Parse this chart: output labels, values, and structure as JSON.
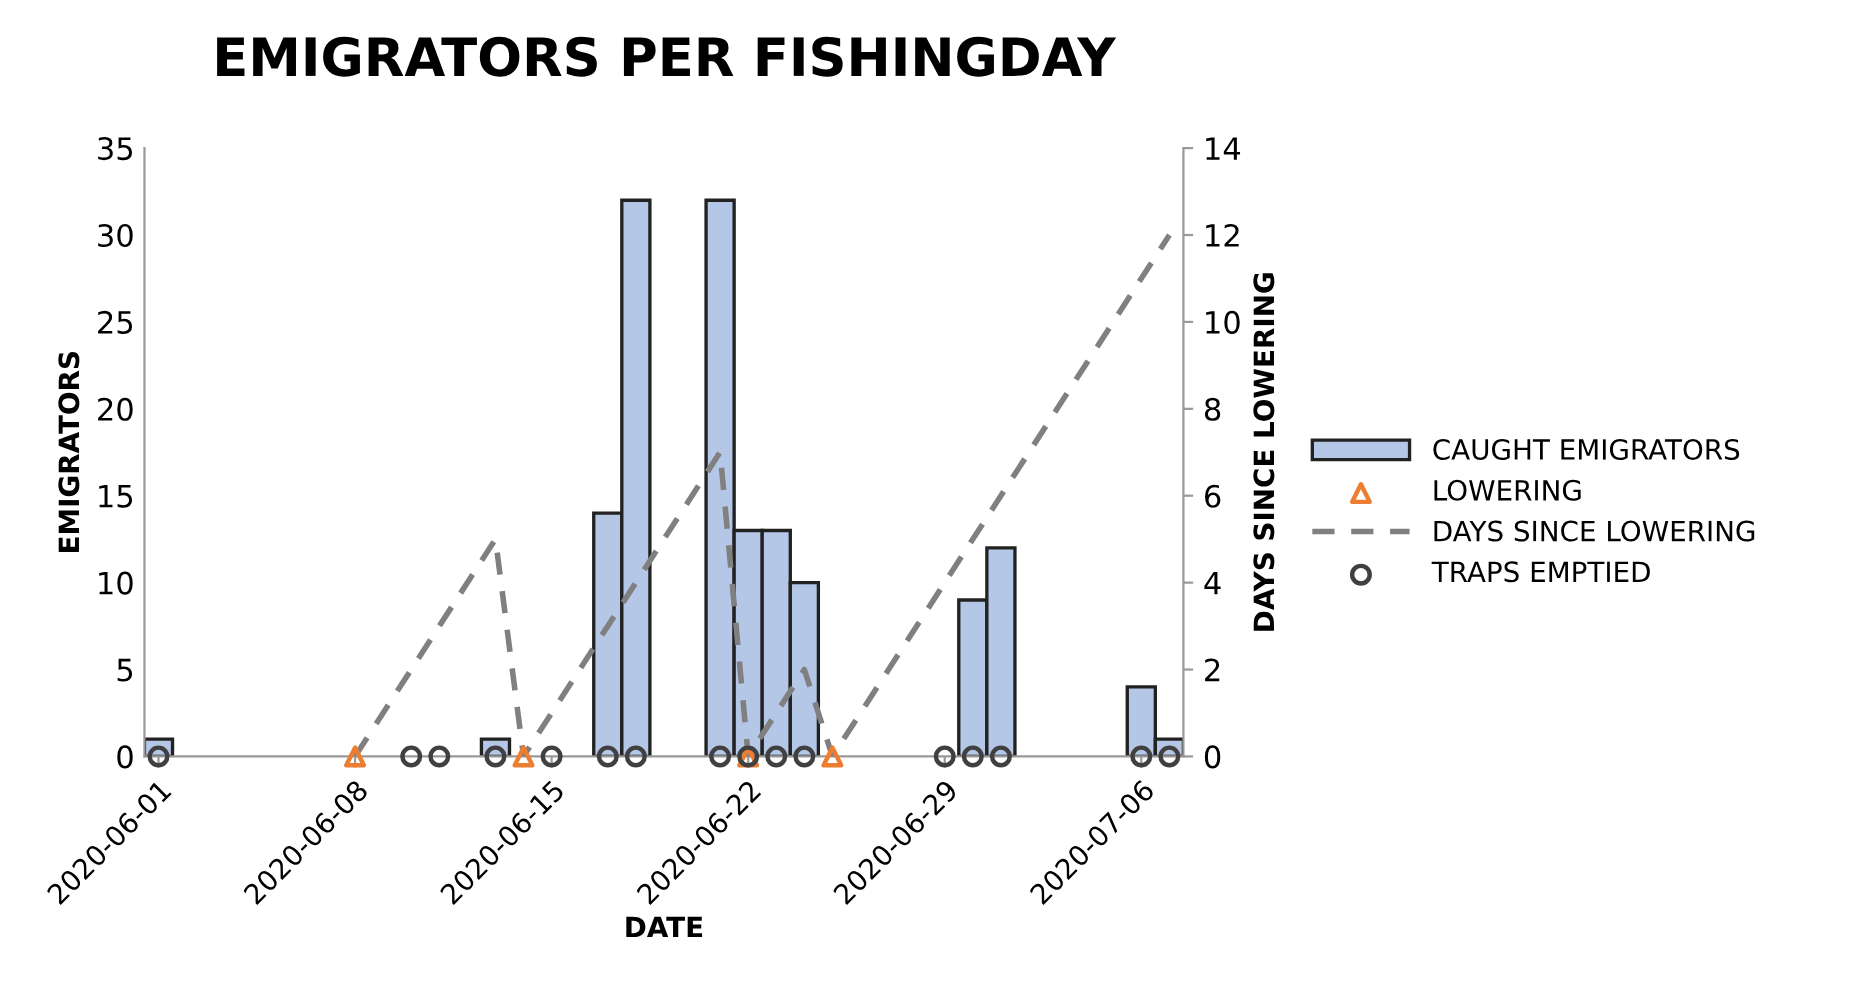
{
  "chart_data": {
    "type": "bar",
    "title": "EMIGRATORS PER FISHINGDAY",
    "xlabel": "DATE",
    "ylabel": "EMIGRATORS",
    "y2label": "DAYS SINCE LOWERING",
    "xlim": [
      "2020-05-31T12:00",
      "2020-07-07T12:00"
    ],
    "xticks": [
      "2020-06-01",
      "2020-06-08",
      "2020-06-15",
      "2020-06-22",
      "2020-06-29",
      "2020-07-06"
    ],
    "ylim": [
      0,
      35
    ],
    "yticks": [
      0,
      5,
      10,
      15,
      20,
      25,
      30,
      35
    ],
    "y2lim": [
      0,
      14
    ],
    "y2ticks": [
      0,
      2,
      4,
      6,
      8,
      10,
      12,
      14
    ],
    "grid": false,
    "legend": "right",
    "series": [
      {
        "name": "CAUGHT EMIGRATORS",
        "color": "#b4c7e7",
        "x": [
          "2020-06-01",
          "2020-06-13",
          "2020-06-17",
          "2020-06-18",
          "2020-06-21",
          "2020-06-22",
          "2020-06-23",
          "2020-06-24",
          "2020-06-30",
          "2020-07-01",
          "2020-07-06",
          "2020-07-07"
        ],
        "values": [
          1,
          1,
          14,
          32,
          32,
          13,
          13,
          10,
          9,
          12,
          4,
          1
        ]
      },
      {
        "name": "LOWERING",
        "type": "scatter",
        "marker": "triangle",
        "color": "#ed7d31",
        "x": [
          "2020-06-08",
          "2020-06-14",
          "2020-06-22",
          "2020-06-25"
        ],
        "values": [
          0,
          0,
          0,
          0
        ]
      },
      {
        "name": "DAYS SINCE LOWERING",
        "type": "line",
        "axis": "y2",
        "line_style": "dashed",
        "marker": "none",
        "color": "#808080",
        "x": [
          "2020-06-08",
          "2020-06-13",
          "2020-06-14",
          "2020-06-21",
          "2020-06-22",
          "2020-06-24",
          "2020-06-25",
          "2020-07-07"
        ],
        "values": [
          0,
          5,
          0,
          7,
          0,
          2,
          0,
          12
        ]
      },
      {
        "name": "TRAPS EMPTIED",
        "type": "scatter",
        "marker": "circle",
        "color": "#404040",
        "x": [
          "2020-06-01",
          "2020-06-10",
          "2020-06-11",
          "2020-06-13",
          "2020-06-15",
          "2020-06-17",
          "2020-06-18",
          "2020-06-21",
          "2020-06-22",
          "2020-06-23",
          "2020-06-24",
          "2020-06-29",
          "2020-06-30",
          "2020-07-01",
          "2020-07-06",
          "2020-07-07"
        ],
        "values": [
          0,
          0,
          0,
          0,
          0,
          0,
          0,
          0,
          0,
          0,
          0,
          0,
          0,
          0,
          0,
          0
        ]
      }
    ]
  }
}
